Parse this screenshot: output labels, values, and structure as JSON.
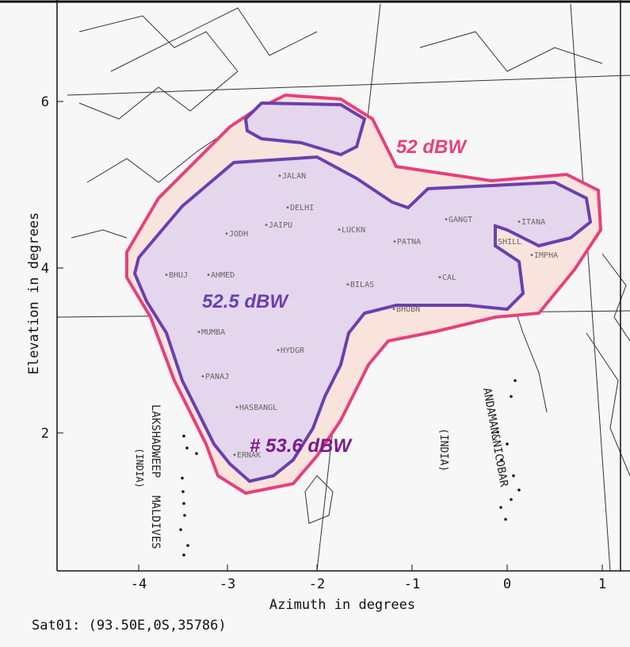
{
  "chart": {
    "ylabel": "Elevation in degrees",
    "xlabel": "Azimuth in degrees",
    "x_ticks": [
      "-4",
      "-3",
      "-2",
      "-1",
      "0",
      "1"
    ],
    "y_ticks": [
      "6",
      "4",
      "2"
    ],
    "footer": "Sat01: (93.50E,0S,35786)"
  },
  "contours": [
    {
      "label": "52 dBW",
      "color": "#e8407a"
    },
    {
      "label": "52.5 dBW",
      "color": "#6a3fb0"
    },
    {
      "label": "# 53.6 dBW",
      "color": "#7a1a8c"
    }
  ],
  "fill_colors": {
    "outer": "#f8e4dc",
    "inner": "#e4d6ec"
  },
  "cities": [
    "JALAN",
    "DELHI",
    "JAIPU",
    "JODH",
    "LUCKN",
    "PATNA",
    "BHUJ",
    "AHMED",
    "BILAS",
    "CAL",
    "GANGT",
    "ITANA",
    "SHILL",
    "IMPHA",
    "BHUBN",
    "MUMBA",
    "HYDGR",
    "PANAJ",
    "HASBANGL",
    "ERNAK"
  ],
  "regions": [
    "LAKSHADWEEP",
    "(INDIA)",
    "MALDIVES",
    "ANDAMAN&NICOBAR",
    "(INDIA)"
  ]
}
